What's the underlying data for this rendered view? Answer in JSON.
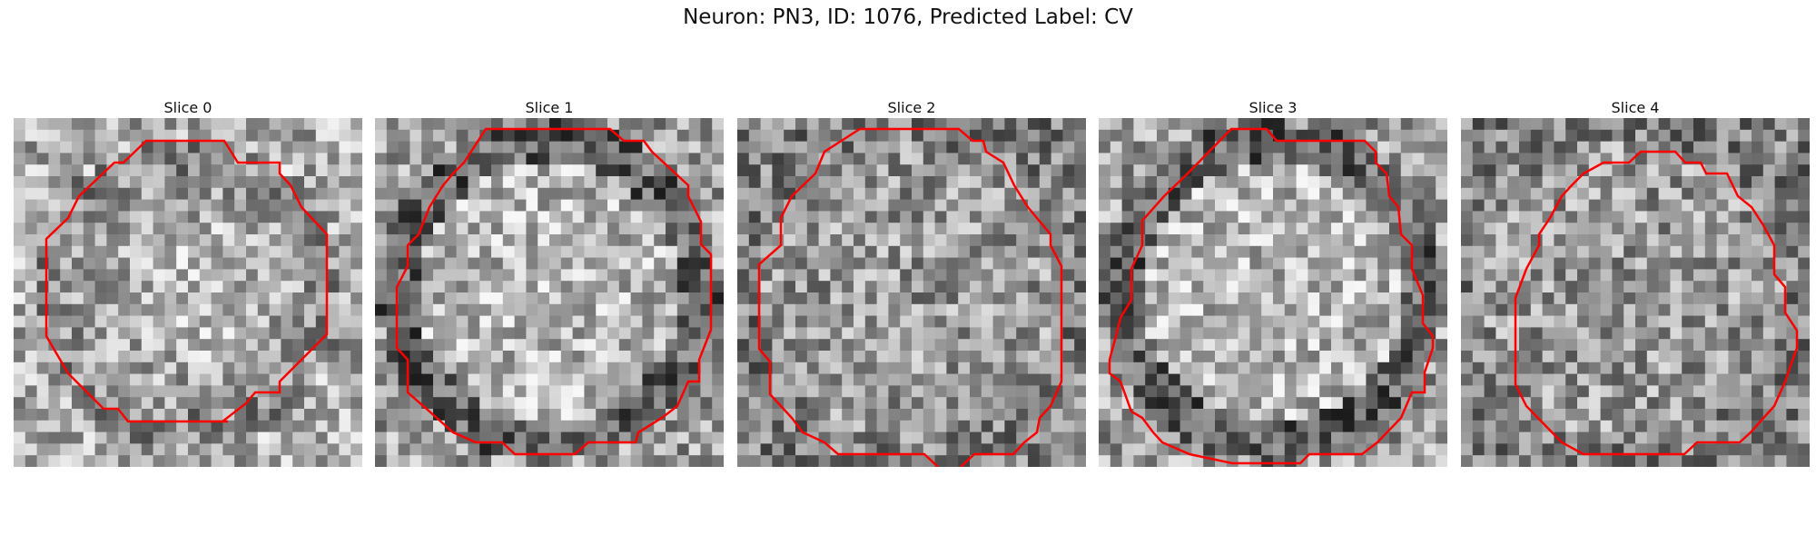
{
  "figure": {
    "title": "Neuron: PN3, ID: 1076, Predicted Label: CV"
  },
  "colors": {
    "background": "#ffffff",
    "contour": "#ff0000",
    "text": "#111111"
  },
  "panels": [
    {
      "title": "Slice 0",
      "pattern": "disk-bright-center"
    },
    {
      "title": "Slice 1",
      "pattern": "disk-dark-rim"
    },
    {
      "title": "Slice 2",
      "pattern": "disk-noisy"
    },
    {
      "title": "Slice 3",
      "pattern": "disk-dark-rim"
    },
    {
      "title": "Slice 4",
      "pattern": "disk-noisy"
    }
  ]
}
